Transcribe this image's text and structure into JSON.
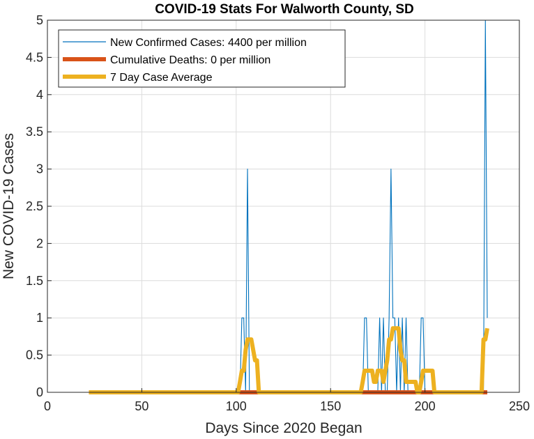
{
  "chart_data": {
    "type": "line",
    "title": "COVID-19 Stats For Walworth County, SD",
    "xlabel": "Days Since 2020 Began",
    "ylabel": "New COVID-19 Cases",
    "xlim": [
      0,
      250
    ],
    "ylim": [
      0,
      5
    ],
    "xticks": [
      0,
      50,
      100,
      150,
      200,
      250
    ],
    "xtick_labels": [
      "0",
      "50",
      "100",
      "150",
      "200",
      "250"
    ],
    "yticks": [
      0,
      0.5,
      1,
      1.5,
      2,
      2.5,
      3,
      3.5,
      4,
      4.5,
      5
    ],
    "ytick_labels": [
      "0",
      "0.5",
      "1",
      "1.5",
      "2",
      "2.5",
      "3",
      "3.5",
      "4",
      "4.5",
      "5"
    ],
    "grid": true,
    "legend_position": "top-left",
    "series": [
      {
        "name": "New Confirmed Cases: 4400 per million",
        "color": "#0072BD",
        "x": [
          22,
          102,
          103,
          104,
          105,
          106,
          107,
          108,
          109,
          110,
          111,
          112,
          113,
          150,
          160,
          167,
          168,
          169,
          170,
          171,
          172,
          173,
          174,
          175,
          176,
          177,
          178,
          179,
          180,
          181,
          182,
          183,
          184,
          185,
          186,
          187,
          188,
          189,
          190,
          191,
          192,
          193,
          194,
          195,
          196,
          197,
          198,
          199,
          200,
          201,
          202,
          203,
          204,
          205,
          206,
          220,
          230,
          231,
          232,
          233
        ],
        "y": [
          0,
          0,
          1,
          1,
          0,
          3,
          0,
          0,
          0,
          0,
          0,
          0,
          0,
          0,
          0,
          0,
          1,
          1,
          0,
          0,
          0,
          0,
          0,
          0,
          1,
          0,
          1,
          0,
          0,
          1,
          3,
          1,
          1,
          0,
          1,
          0,
          1,
          0,
          1,
          0,
          0,
          0,
          0,
          0,
          0,
          0,
          1,
          1,
          0,
          0,
          0,
          0,
          0,
          0,
          0,
          0,
          0,
          0,
          5,
          1
        ]
      },
      {
        "name": "Cumulative Deaths: 0 per million",
        "color": "#D95319",
        "x": [
          22,
          233
        ],
        "y": [
          0,
          0
        ]
      },
      {
        "name": "7 Day Case Average",
        "color": "#EDB120",
        "x": [
          22,
          101,
          102,
          103,
          104,
          105,
          106,
          107,
          108,
          109,
          110,
          111,
          112,
          113,
          166,
          167,
          168,
          169,
          170,
          171,
          172,
          173,
          174,
          175,
          176,
          177,
          178,
          179,
          180,
          181,
          182,
          183,
          184,
          185,
          186,
          187,
          188,
          189,
          190,
          191,
          192,
          193,
          194,
          195,
          196,
          197,
          198,
          199,
          200,
          201,
          202,
          203,
          204,
          205,
          206,
          230,
          231,
          232,
          233
        ],
        "y": [
          0,
          0,
          0.14,
          0.29,
          0.29,
          0.57,
          0.71,
          0.71,
          0.71,
          0.57,
          0.43,
          0.43,
          0,
          0,
          0,
          0.14,
          0.29,
          0.29,
          0.29,
          0.29,
          0.29,
          0.14,
          0.14,
          0.29,
          0.29,
          0.29,
          0.14,
          0.29,
          0.43,
          0.71,
          0.71,
          0.86,
          0.86,
          0.86,
          0.86,
          0.57,
          0.43,
          0.43,
          0.14,
          0.14,
          0.14,
          0.14,
          0.14,
          0.14,
          0,
          0,
          0.14,
          0.29,
          0.29,
          0.29,
          0.29,
          0.29,
          0.29,
          0,
          0,
          0,
          0.71,
          0.71,
          0.86
        ]
      }
    ]
  }
}
